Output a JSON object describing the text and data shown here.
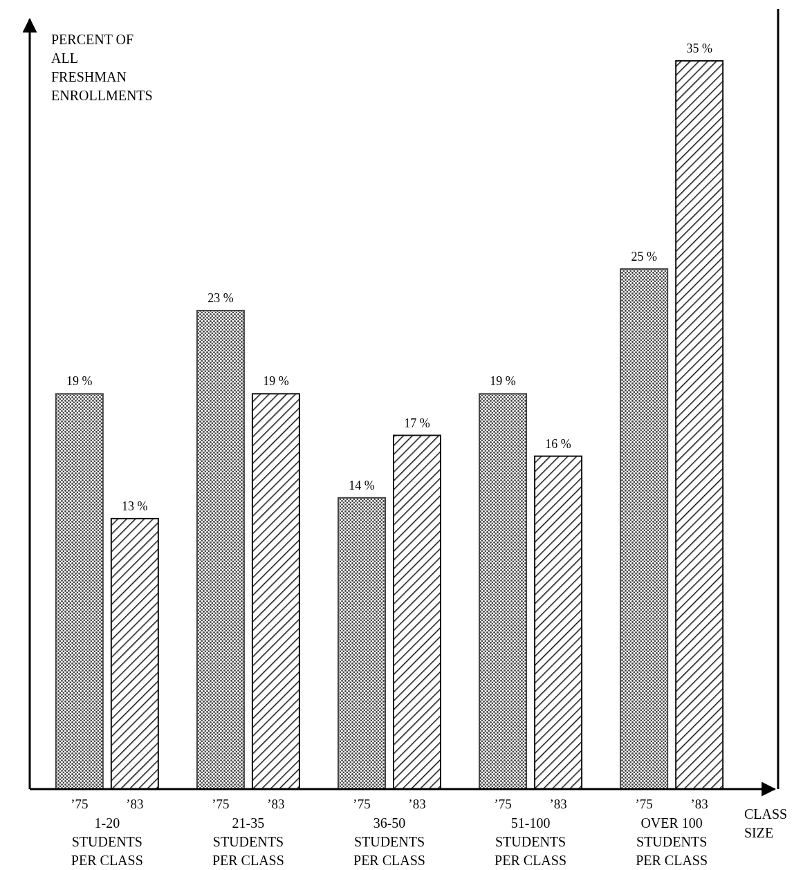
{
  "chart_data": {
    "type": "bar",
    "ylabel": "PERCENT OF ALL FRESHMAN ENROLLMENTS",
    "xlabel": "CLASS SIZE",
    "categories": [
      "1-20 STUDENTS PER CLASS",
      "21-35 STUDENTS PER CLASS",
      "36-50 STUDENTS PER CLASS",
      "51-100 STUDENTS PER CLASS",
      "OVER 100 STUDENTS PER CLASS"
    ],
    "series": [
      {
        "name": "’75",
        "color": "#444444",
        "values": [
          19,
          23,
          14,
          19,
          25
        ],
        "value_labels": [
          "19 %",
          "23 %",
          "14 %",
          "19 %",
          "25 %"
        ]
      },
      {
        "name": "’83",
        "color": "#111111",
        "values": [
          13,
          19,
          17,
          16,
          35
        ],
        "value_labels": [
          "13 %",
          "19 %",
          "17 %",
          "16 %",
          "35 %"
        ]
      }
    ]
  }
}
